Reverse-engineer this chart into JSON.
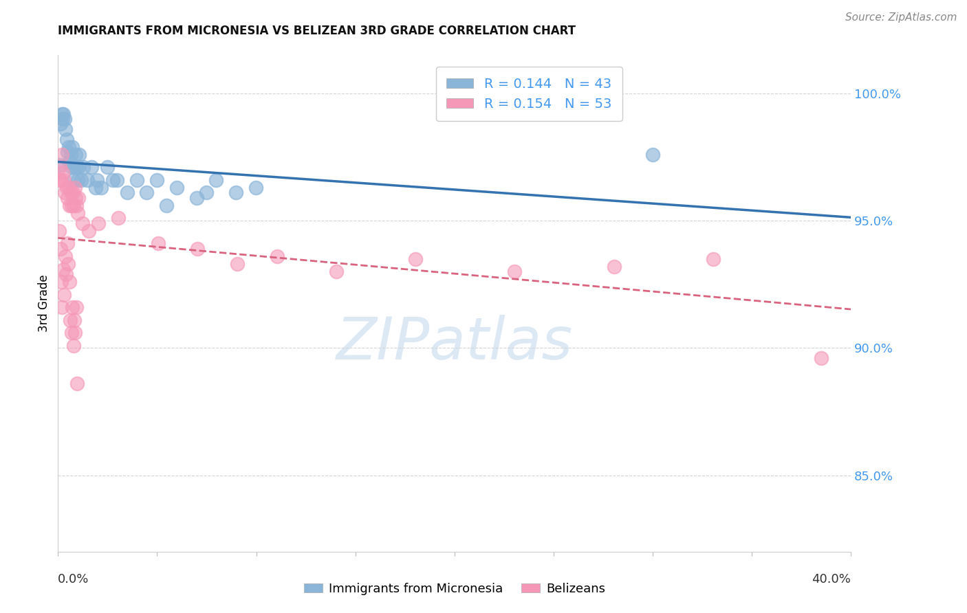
{
  "title": "IMMIGRANTS FROM MICRONESIA VS BELIZEAN 3RD GRADE CORRELATION CHART",
  "source": "Source: ZipAtlas.com",
  "ylabel": "3rd Grade",
  "xlim": [
    0.0,
    40.0
  ],
  "ylim": [
    82.0,
    101.5
  ],
  "y_ticks": [
    85.0,
    90.0,
    95.0,
    100.0
  ],
  "blue_R": 0.144,
  "blue_N": 43,
  "pink_R": 0.154,
  "pink_N": 53,
  "blue_color": "#8ab4d8",
  "pink_color": "#f598b8",
  "blue_trend_color": "#3572b0",
  "pink_trend_color": "#d9637f",
  "watermark_color": "#dce9f5",
  "right_tick_color": "#4499ee",
  "legend_label_blue": "Immigrants from Micronesia",
  "legend_label_pink": "Belizeans",
  "blue_x": [
    0.08,
    0.12,
    0.18,
    0.22,
    0.27,
    0.32,
    0.38,
    0.43,
    0.48,
    0.53,
    0.58,
    0.63,
    0.68,
    0.73,
    0.78,
    0.83,
    0.88,
    0.93,
    0.98,
    1.03,
    1.08,
    1.18,
    1.28,
    1.48,
    1.68,
    1.88,
    1.98,
    2.18,
    2.48,
    2.78,
    2.98,
    3.48,
    3.98,
    4.48,
    4.98,
    5.48,
    5.98,
    6.98,
    7.48,
    7.98,
    8.98,
    9.98,
    30.0
  ],
  "blue_y": [
    97.2,
    98.8,
    99.2,
    99.0,
    99.2,
    99.0,
    98.6,
    98.2,
    97.7,
    97.9,
    97.3,
    97.6,
    97.1,
    97.9,
    96.6,
    97.1,
    97.6,
    97.1,
    96.6,
    97.1,
    97.6,
    96.6,
    97.1,
    96.6,
    97.1,
    96.3,
    96.6,
    96.3,
    97.1,
    96.6,
    96.6,
    96.1,
    96.6,
    96.1,
    96.6,
    95.6,
    96.3,
    95.9,
    96.1,
    96.6,
    96.1,
    96.3,
    97.6
  ],
  "pink_x": [
    0.05,
    0.09,
    0.14,
    0.19,
    0.24,
    0.29,
    0.34,
    0.06,
    0.11,
    0.17,
    0.21,
    0.26,
    0.31,
    0.37,
    0.42,
    0.47,
    0.52,
    0.57,
    0.62,
    0.67,
    0.72,
    0.77,
    0.82,
    0.87,
    0.92,
    0.97,
    0.44,
    0.49,
    0.54,
    0.59,
    0.64,
    0.69,
    0.74,
    0.79,
    0.84,
    0.89,
    0.94,
    0.99,
    1.04,
    1.24,
    1.54,
    2.04,
    3.04,
    5.04,
    7.04,
    9.04,
    11.04,
    14.04,
    18.04,
    23.04,
    28.04,
    33.04,
    38.5
  ],
  "pink_y": [
    96.6,
    97.1,
    96.6,
    97.6,
    96.9,
    96.6,
    96.1,
    94.6,
    93.9,
    92.6,
    91.6,
    93.1,
    92.1,
    93.6,
    92.9,
    94.1,
    93.3,
    92.6,
    91.1,
    90.6,
    91.6,
    90.1,
    91.1,
    90.6,
    91.6,
    88.6,
    96.3,
    95.9,
    96.3,
    95.6,
    96.1,
    95.6,
    96.1,
    95.6,
    96.3,
    95.9,
    95.6,
    95.3,
    95.9,
    94.9,
    94.6,
    94.9,
    95.1,
    94.1,
    93.9,
    93.3,
    93.6,
    93.0,
    93.5,
    93.0,
    93.2,
    93.5,
    89.6
  ]
}
